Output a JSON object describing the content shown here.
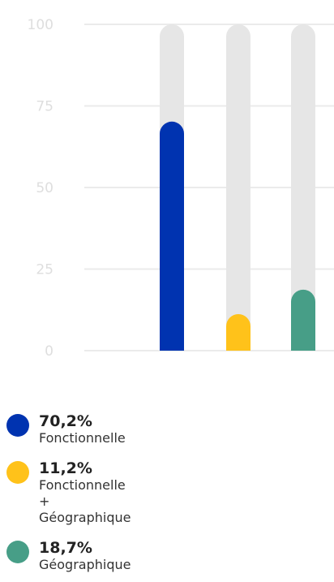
{
  "chart_data": {
    "type": "bar",
    "ylim": [
      0,
      100
    ],
    "yticks": [
      "100",
      "75",
      "50",
      "25",
      "0"
    ],
    "categories": [
      "Fonctionnelle",
      "Fonctionnelle\n+\nGéographique",
      "Géographique"
    ],
    "values": [
      70.2,
      11.2,
      18.7
    ],
    "colors": [
      "#0033B0",
      "#FFC21A",
      "#479E87"
    ],
    "track_color": "#E6E6E6",
    "grid": true,
    "legend_position": "bottom-left"
  },
  "legend": [
    {
      "value": "70,2%",
      "label": "Fonctionnelle",
      "color": "#0033B0"
    },
    {
      "value": "11,2%",
      "label": "Fonctionnelle\n+\nGéographique",
      "color": "#FFC21A"
    },
    {
      "value": "18,7%",
      "label": "Géographique",
      "color": "#479E87"
    }
  ]
}
